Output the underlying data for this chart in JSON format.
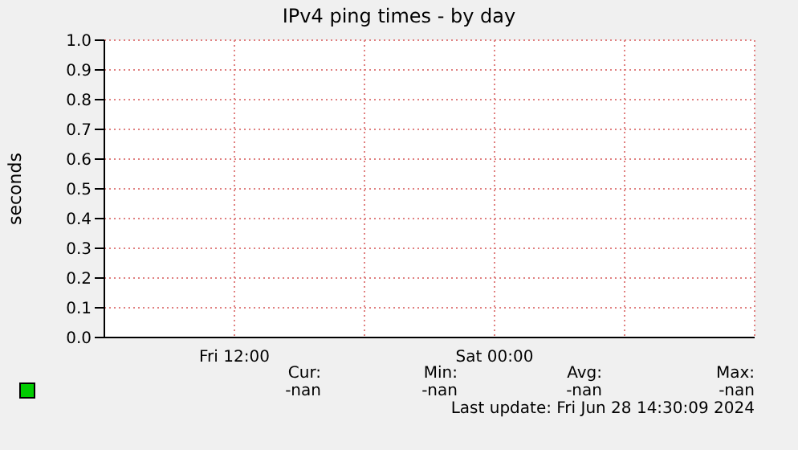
{
  "chart_data": {
    "type": "line",
    "title": "IPv4 ping times - by day",
    "ylabel": "seconds",
    "categories": [
      null,
      "Fri 12:00",
      null,
      "Sat 00:00",
      null,
      null
    ],
    "series": [
      {
        "color": "#00cc00",
        "values": [
          null,
          null,
          null,
          null,
          null,
          null
        ]
      }
    ],
    "ylim": [
      0,
      1
    ],
    "yticks": [
      {
        "value": 0,
        "label": "0.0"
      },
      {
        "value": 0.1,
        "label": "0.1"
      },
      {
        "value": 0.2,
        "label": "0.2"
      },
      {
        "value": 0.3,
        "label": "0.3"
      },
      {
        "value": 0.4,
        "label": "0.4"
      },
      {
        "value": 0.5,
        "label": "0.5"
      },
      {
        "value": 0.6,
        "label": "0.6"
      },
      {
        "value": 0.7,
        "label": "0.7"
      },
      {
        "value": 0.8,
        "label": "0.8"
      },
      {
        "value": 0.9,
        "label": "0.9"
      },
      {
        "value": 1,
        "label": "1.0"
      }
    ],
    "grid": true,
    "annotations": [
      "Cur:",
      "-nan",
      "Min:",
      "-nan",
      "Avg:",
      "-nan",
      "Max:",
      "-nan",
      "Last update: Fri Jun 28 14:30:09 2024"
    ]
  }
}
